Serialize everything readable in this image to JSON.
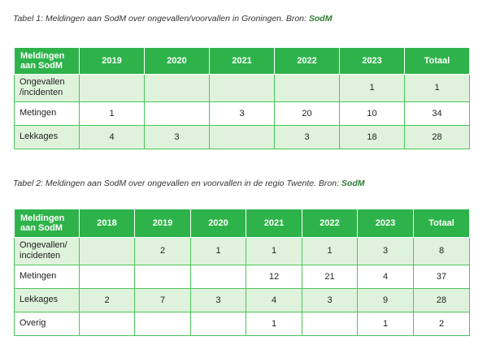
{
  "table1": {
    "caption_text": "Tabel 1: Meldingen aan SodM over ongevallen/voorvallen in Groningen. Bron: ",
    "caption_source": "SodM",
    "header": [
      "Meldingen aan SodM",
      "2019",
      "2020",
      "2021",
      "2022",
      "2023",
      "Totaal"
    ],
    "rows": [
      [
        "Ongevallen /incidenten",
        "",
        "",
        "",
        "",
        "1",
        "1"
      ],
      [
        "Metingen",
        "1",
        "",
        "3",
        "20",
        "10",
        "34"
      ],
      [
        "Lekkages",
        "4",
        "3",
        "",
        "3",
        "18",
        "28"
      ]
    ]
  },
  "table2": {
    "caption_text": "Tabel 2: Meldingen aan SodM over ongevallen en voorvallen in de regio Twente. Bron: ",
    "caption_source": "SodM",
    "header": [
      "Meldingen aan SodM",
      "2018",
      "2019",
      "2020",
      "2021",
      "2022",
      "2023",
      "Totaal"
    ],
    "rows": [
      [
        "Ongevallen/ incidenten",
        "",
        "2",
        "1",
        "1",
        "1",
        "3",
        "8"
      ],
      [
        "Metingen",
        "",
        "",
        "",
        "12",
        "21",
        "4",
        "37"
      ],
      [
        "Lekkages",
        "2",
        "7",
        "3",
        "4",
        "3",
        "9",
        "28"
      ],
      [
        "Overig",
        "",
        "",
        "",
        "1",
        "",
        "1",
        "2"
      ]
    ]
  },
  "colors": {
    "header_green": "#2eb34a",
    "row_shade": "#dff3dc",
    "border_green": "#4cc45a",
    "source_green": "#2e7d32"
  }
}
